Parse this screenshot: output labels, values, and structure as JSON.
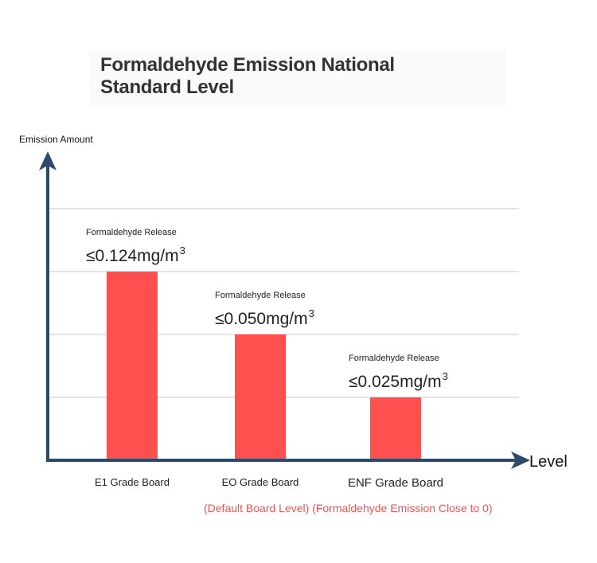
{
  "chart_data": {
    "type": "bar",
    "title": "Formaldehyde Emission National Standard Level",
    "ylabel": "Emission Amount",
    "xlabel": "Level",
    "categories": [
      "E1 Grade Board",
      "EO Grade Board",
      "ENF Grade Board"
    ],
    "values": [
      0.124,
      0.05,
      0.025
    ],
    "annotations": [
      {
        "label": "Formaldehyde Release",
        "value_text": "≤0.124mg/m",
        "unit_sup": "3"
      },
      {
        "label": "Formaldehyde Release",
        "value_text": "≤0.050mg/m",
        "unit_sup": "3"
      },
      {
        "label": "Formaldehyde Release",
        "value_text": "≤0.025mg/m",
        "unit_sup": "3"
      }
    ],
    "note": "(Default Board Level) (Formaldehyde Emission Close to 0)",
    "grid": true,
    "colors": {
      "bar": "#ff4f4f",
      "axis": "#2d4a6e",
      "grid": "#c8c8c8",
      "note": "#e05a5a"
    }
  }
}
